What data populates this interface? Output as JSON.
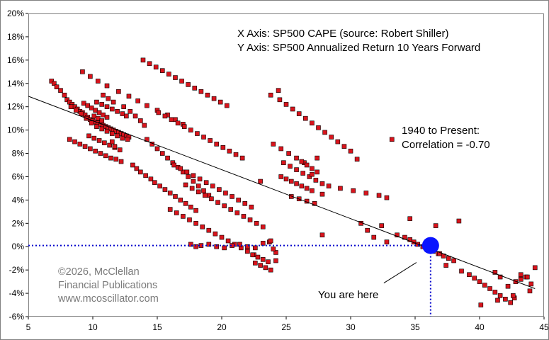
{
  "chart_data": {
    "type": "scatter",
    "title": "",
    "xlabel": "",
    "ylabel": "",
    "xlim": [
      5,
      45
    ],
    "ylim": [
      -6,
      20
    ],
    "x_ticks": [
      "5",
      "10",
      "15",
      "20",
      "25",
      "30",
      "35",
      "40",
      "45"
    ],
    "y_ticks": [
      "-6%",
      "-4%",
      "-2%",
      "0%",
      "2%",
      "4%",
      "6%",
      "8%",
      "10%",
      "12%",
      "14%",
      "16%",
      "18%",
      "20%"
    ],
    "grid": false,
    "annotations": {
      "x_axis_note": "X Axis: SP500 CAPE (source: Robert Shiller)",
      "y_axis_note": "Y Axis: SP500 Annualized Return 10 Years Forward",
      "period": "1940 to Present:",
      "correlation": "Correlation = -0.70",
      "marker_label": "You are here"
    },
    "watermark": [
      "©2026, McClellan",
      "Financial Publications",
      "www.mcoscillator.com"
    ],
    "colors": {
      "points_fill": "#d8141c",
      "points_stroke": "#000000",
      "trendline": "#000000",
      "current_marker": "#0a14ff",
      "guide_line": "#0000cc",
      "watermark": "#7a7a7a"
    },
    "trendline": {
      "x": [
        5,
        44.3
      ],
      "y": [
        12.9,
        -3.6
      ]
    },
    "current": {
      "x": 36.2,
      "y": 0.1
    },
    "series": [
      {
        "x": [
          6.8,
          7.0,
          7.2,
          7.5,
          7.8,
          8.0,
          8.2,
          8.4,
          8.6,
          8.8,
          9.0,
          9.2,
          9.4,
          9.6,
          9.8,
          10.0,
          10.2,
          10.4,
          10.6,
          10.8,
          11.0,
          11.2,
          11.4,
          11.6,
          11.8,
          12.0,
          12.2,
          12.4,
          12.6,
          12.8,
          8.3,
          8.7,
          9.1,
          9.5,
          9.9,
          10.3,
          10.7,
          11.1,
          11.5,
          11.9,
          12.3,
          12.7,
          9.3,
          9.6,
          9.9,
          10.2,
          10.5,
          10.8,
          11.1,
          10.1,
          10.4,
          10.7,
          8.2,
          8.6,
          9.0,
          9.4,
          9.8,
          10.2,
          10.6,
          11.0,
          11.4,
          11.8,
          12.2,
          9.7,
          10.1,
          10.5,
          10.9,
          11.3,
          11.7,
          12.1,
          10.3,
          10.7,
          11.1,
          11.5,
          11.9,
          12.3,
          12.6,
          10.8,
          11.2,
          11.6,
          12.4,
          12.9,
          13.3,
          13.7,
          14.0,
          11.5,
          11.7,
          9.2,
          9.8,
          10.4,
          11.1,
          12.0,
          12.8,
          13.5,
          14.2,
          15.0,
          15.8,
          16.4,
          17.0,
          13.1,
          13.4,
          13.7,
          14.1,
          14.5,
          14.8,
          15.2,
          15.6,
          16.0,
          16.4,
          16.8,
          17.2,
          17.6,
          18.0,
          14.2,
          14.6,
          15.0,
          15.4,
          15.8,
          16.2,
          16.6,
          17.0,
          17.4,
          17.8,
          18.2,
          18.6,
          19.0,
          13.9,
          14.4,
          14.9,
          15.4,
          15.9,
          16.4,
          16.9,
          17.4,
          17.9,
          18.4,
          18.9,
          19.4,
          19.9,
          20.4,
          15.1,
          15.6,
          16.1,
          16.6,
          17.1,
          17.6,
          18.1,
          18.6,
          19.1,
          19.6,
          20.1,
          20.6,
          21.1,
          21.6,
          16.3,
          16.8,
          17.3,
          17.8,
          18.3,
          18.8,
          19.3,
          19.8,
          20.3,
          20.8,
          21.3,
          21.8,
          22.3,
          16.0,
          16.5,
          17.0,
          17.5,
          18.0,
          18.5,
          19.0,
          19.5,
          20.0,
          20.5,
          21.0,
          21.5,
          22.0,
          22.5,
          23.0,
          17.2,
          17.7,
          18.2,
          18.7,
          19.2,
          19.7,
          20.2,
          20.7,
          21.2,
          21.7,
          22.2,
          22.7,
          23.2,
          23.7,
          17.6,
          18.0,
          18.4,
          19.0,
          19.6,
          20.2,
          20.8,
          21.4,
          22.0,
          22.6,
          23.2,
          23.8,
          24.2,
          22.6,
          23.0,
          23.4,
          23.8,
          24.2,
          22.4,
          22.8,
          23.2,
          23.6,
          24.0,
          24.4,
          23.8,
          24.5,
          25.0,
          25.5,
          26.0,
          26.5,
          27.0,
          27.5,
          28.0,
          28.5,
          29.0,
          29.5,
          30.0,
          30.5,
          24.8,
          25.3,
          25.8,
          26.3,
          26.8,
          27.3,
          27.8,
          28.3,
          29.2,
          30.2,
          31.2,
          32.2,
          32.8,
          33.2,
          24.0,
          24.6,
          25.2,
          25.8,
          26.4,
          27.0,
          24.6,
          25.0,
          25.4,
          25.8,
          26.2,
          26.6,
          27.0,
          27.4,
          26.2,
          26.6,
          27.0,
          27.4,
          27.8,
          25.4,
          26.0,
          26.6,
          27.2,
          27.8,
          34.2,
          34.6,
          34.9,
          35.2,
          35.6,
          36.0,
          36.4,
          36.8,
          37.2,
          37.6,
          38.0,
          38.4,
          32.4,
          33.6,
          34.6,
          36.6,
          36.9,
          37.4,
          38.6,
          39.2,
          39.6,
          40.0,
          40.4,
          40.8,
          41.2,
          41.6,
          42.0,
          42.4,
          42.8,
          43.2,
          43.6,
          44.0,
          44.3,
          41.2,
          41.6,
          42.2,
          42.7,
          43.2,
          43.7,
          40.1,
          41.4,
          42.6,
          43.9,
          30.8,
          31.3,
          31.8,
          32.8
        ],
        "y": [
          14.2,
          14.0,
          13.7,
          13.4,
          13.0,
          12.6,
          12.4,
          12.2,
          12.0,
          11.8,
          11.6,
          11.5,
          11.3,
          11.1,
          10.9,
          10.8,
          10.7,
          10.6,
          10.5,
          10.4,
          10.3,
          10.2,
          10.1,
          10.0,
          9.9,
          9.8,
          9.7,
          9.6,
          9.5,
          9.4,
          12.0,
          11.7,
          11.4,
          11.0,
          10.6,
          10.3,
          10.1,
          9.9,
          9.7,
          9.5,
          9.3,
          9.2,
          12.3,
          12.1,
          11.9,
          11.7,
          11.5,
          11.3,
          11.1,
          11.2,
          11.0,
          10.8,
          9.2,
          9.0,
          8.8,
          8.6,
          8.4,
          8.2,
          8.0,
          7.8,
          7.6,
          7.5,
          7.3,
          9.5,
          9.3,
          9.1,
          8.9,
          8.7,
          8.5,
          8.3,
          12.4,
          12.2,
          12.0,
          11.8,
          11.6,
          11.4,
          11.2,
          13.0,
          12.7,
          12.4,
          12.0,
          11.6,
          11.2,
          10.8,
          10.4,
          9.0,
          8.6,
          15.0,
          14.6,
          14.2,
          13.8,
          13.3,
          12.9,
          12.5,
          12.1,
          11.7,
          11.3,
          10.9,
          10.5,
          7.0,
          6.7,
          6.4,
          6.1,
          5.8,
          5.5,
          5.2,
          4.9,
          4.6,
          4.3,
          4.0,
          3.7,
          3.4,
          3.1,
          9.2,
          8.8,
          8.4,
          8.0,
          7.6,
          7.2,
          6.8,
          6.4,
          6.0,
          5.6,
          5.2,
          4.8,
          4.4,
          16.0,
          15.7,
          15.4,
          15.1,
          14.8,
          14.5,
          14.2,
          13.9,
          13.6,
          13.3,
          13.0,
          12.7,
          12.4,
          12.1,
          11.5,
          11.2,
          10.9,
          10.6,
          10.3,
          10.0,
          9.7,
          9.4,
          9.1,
          8.8,
          8.5,
          8.2,
          7.9,
          7.6,
          7.0,
          6.7,
          6.4,
          6.1,
          5.8,
          5.5,
          5.2,
          4.9,
          4.6,
          4.3,
          4.0,
          3.7,
          3.4,
          3.2,
          2.9,
          2.6,
          2.3,
          2.0,
          1.7,
          1.4,
          1.1,
          0.8,
          0.5,
          0.2,
          -0.1,
          -0.4,
          -0.7,
          5.6,
          5.3,
          5.0,
          4.7,
          4.4,
          4.1,
          3.8,
          3.5,
          3.2,
          2.9,
          2.6,
          2.3,
          2.0,
          1.7,
          0.4,
          0.2,
          0.0,
          0.1,
          0.2,
          0.0,
          -0.1,
          0.1,
          0.2,
          0.0,
          -0.1,
          0.3,
          0.5,
          -1.2,
          -1.4,
          -1.6,
          -1.8,
          -2.0,
          -0.5,
          -0.7,
          -0.9,
          -1.1,
          -1.3,
          -0.2,
          13.4,
          13.0,
          12.6,
          12.2,
          11.8,
          11.4,
          11.0,
          10.6,
          10.2,
          9.8,
          9.4,
          9.0,
          8.6,
          8.2,
          7.5,
          7.2,
          6.9,
          6.6,
          6.3,
          6.0,
          5.7,
          5.4,
          5.2,
          5.0,
          4.8,
          4.6,
          4.4,
          4.2,
          9.2,
          8.8,
          8.4,
          8.0,
          7.6,
          7.2,
          6.2,
          6.0,
          5.8,
          5.6,
          5.4,
          5.2,
          5.0,
          4.8,
          7.6,
          7.3,
          7.0,
          6.7,
          6.4,
          4.5,
          4.3,
          4.1,
          3.9,
          3.7,
          1.0,
          0.8,
          0.6,
          0.4,
          0.2,
          0.0,
          -0.2,
          -0.4,
          -0.6,
          -0.8,
          -1.0,
          -1.2,
          2.2,
          1.8,
          1.0,
          2.4,
          1.8,
          -0.6,
          -1.6,
          -2.1,
          -2.4,
          -2.7,
          -3.0,
          -3.3,
          -3.6,
          -3.9,
          -4.2,
          -4.5,
          -4.8,
          -3.0,
          -2.8,
          -2.6,
          -3.2,
          -1.8,
          -2.2,
          -2.6,
          -3.4,
          -4.4,
          -2.4,
          -2.6,
          -5.0,
          -4.6,
          -4.2,
          -3.8,
          2.0,
          1.4,
          0.8,
          0.4
        ]
      }
    ]
  }
}
